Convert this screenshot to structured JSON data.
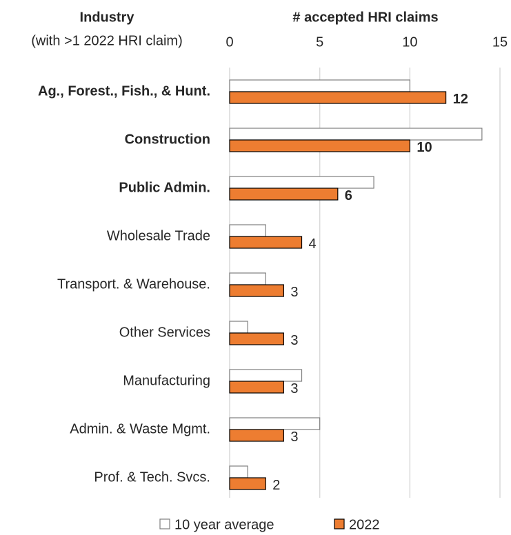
{
  "chart_data": {
    "type": "bar",
    "orientation": "horizontal",
    "title": "# accepted HRI claims",
    "y_axis_title": "Industry",
    "y_axis_subtitle": "(with >1 2022 HRI claim)",
    "categories": [
      "Ag., Forest., Fish., & Hunt.",
      "Construction",
      "Public Admin.",
      "Wholesale Trade",
      "Transport. & Warehouse.",
      "Other Services",
      "Manufacturing",
      "Admin. & Waste Mgmt.",
      "Prof. & Tech. Svcs."
    ],
    "bold": [
      true,
      true,
      true,
      false,
      false,
      false,
      false,
      false,
      false
    ],
    "series": [
      {
        "name": "10 year average",
        "color": "#ffffff",
        "values": [
          10,
          14,
          8,
          2,
          2,
          1,
          4,
          5,
          1
        ]
      },
      {
        "name": "2022",
        "color": "#ed7d31",
        "values": [
          12,
          10,
          6,
          4,
          3,
          3,
          3,
          3,
          2
        ]
      }
    ],
    "xlim": [
      0,
      15
    ],
    "xticks": [
      0,
      5,
      10,
      15
    ],
    "grid": true,
    "legend": "bottom"
  }
}
